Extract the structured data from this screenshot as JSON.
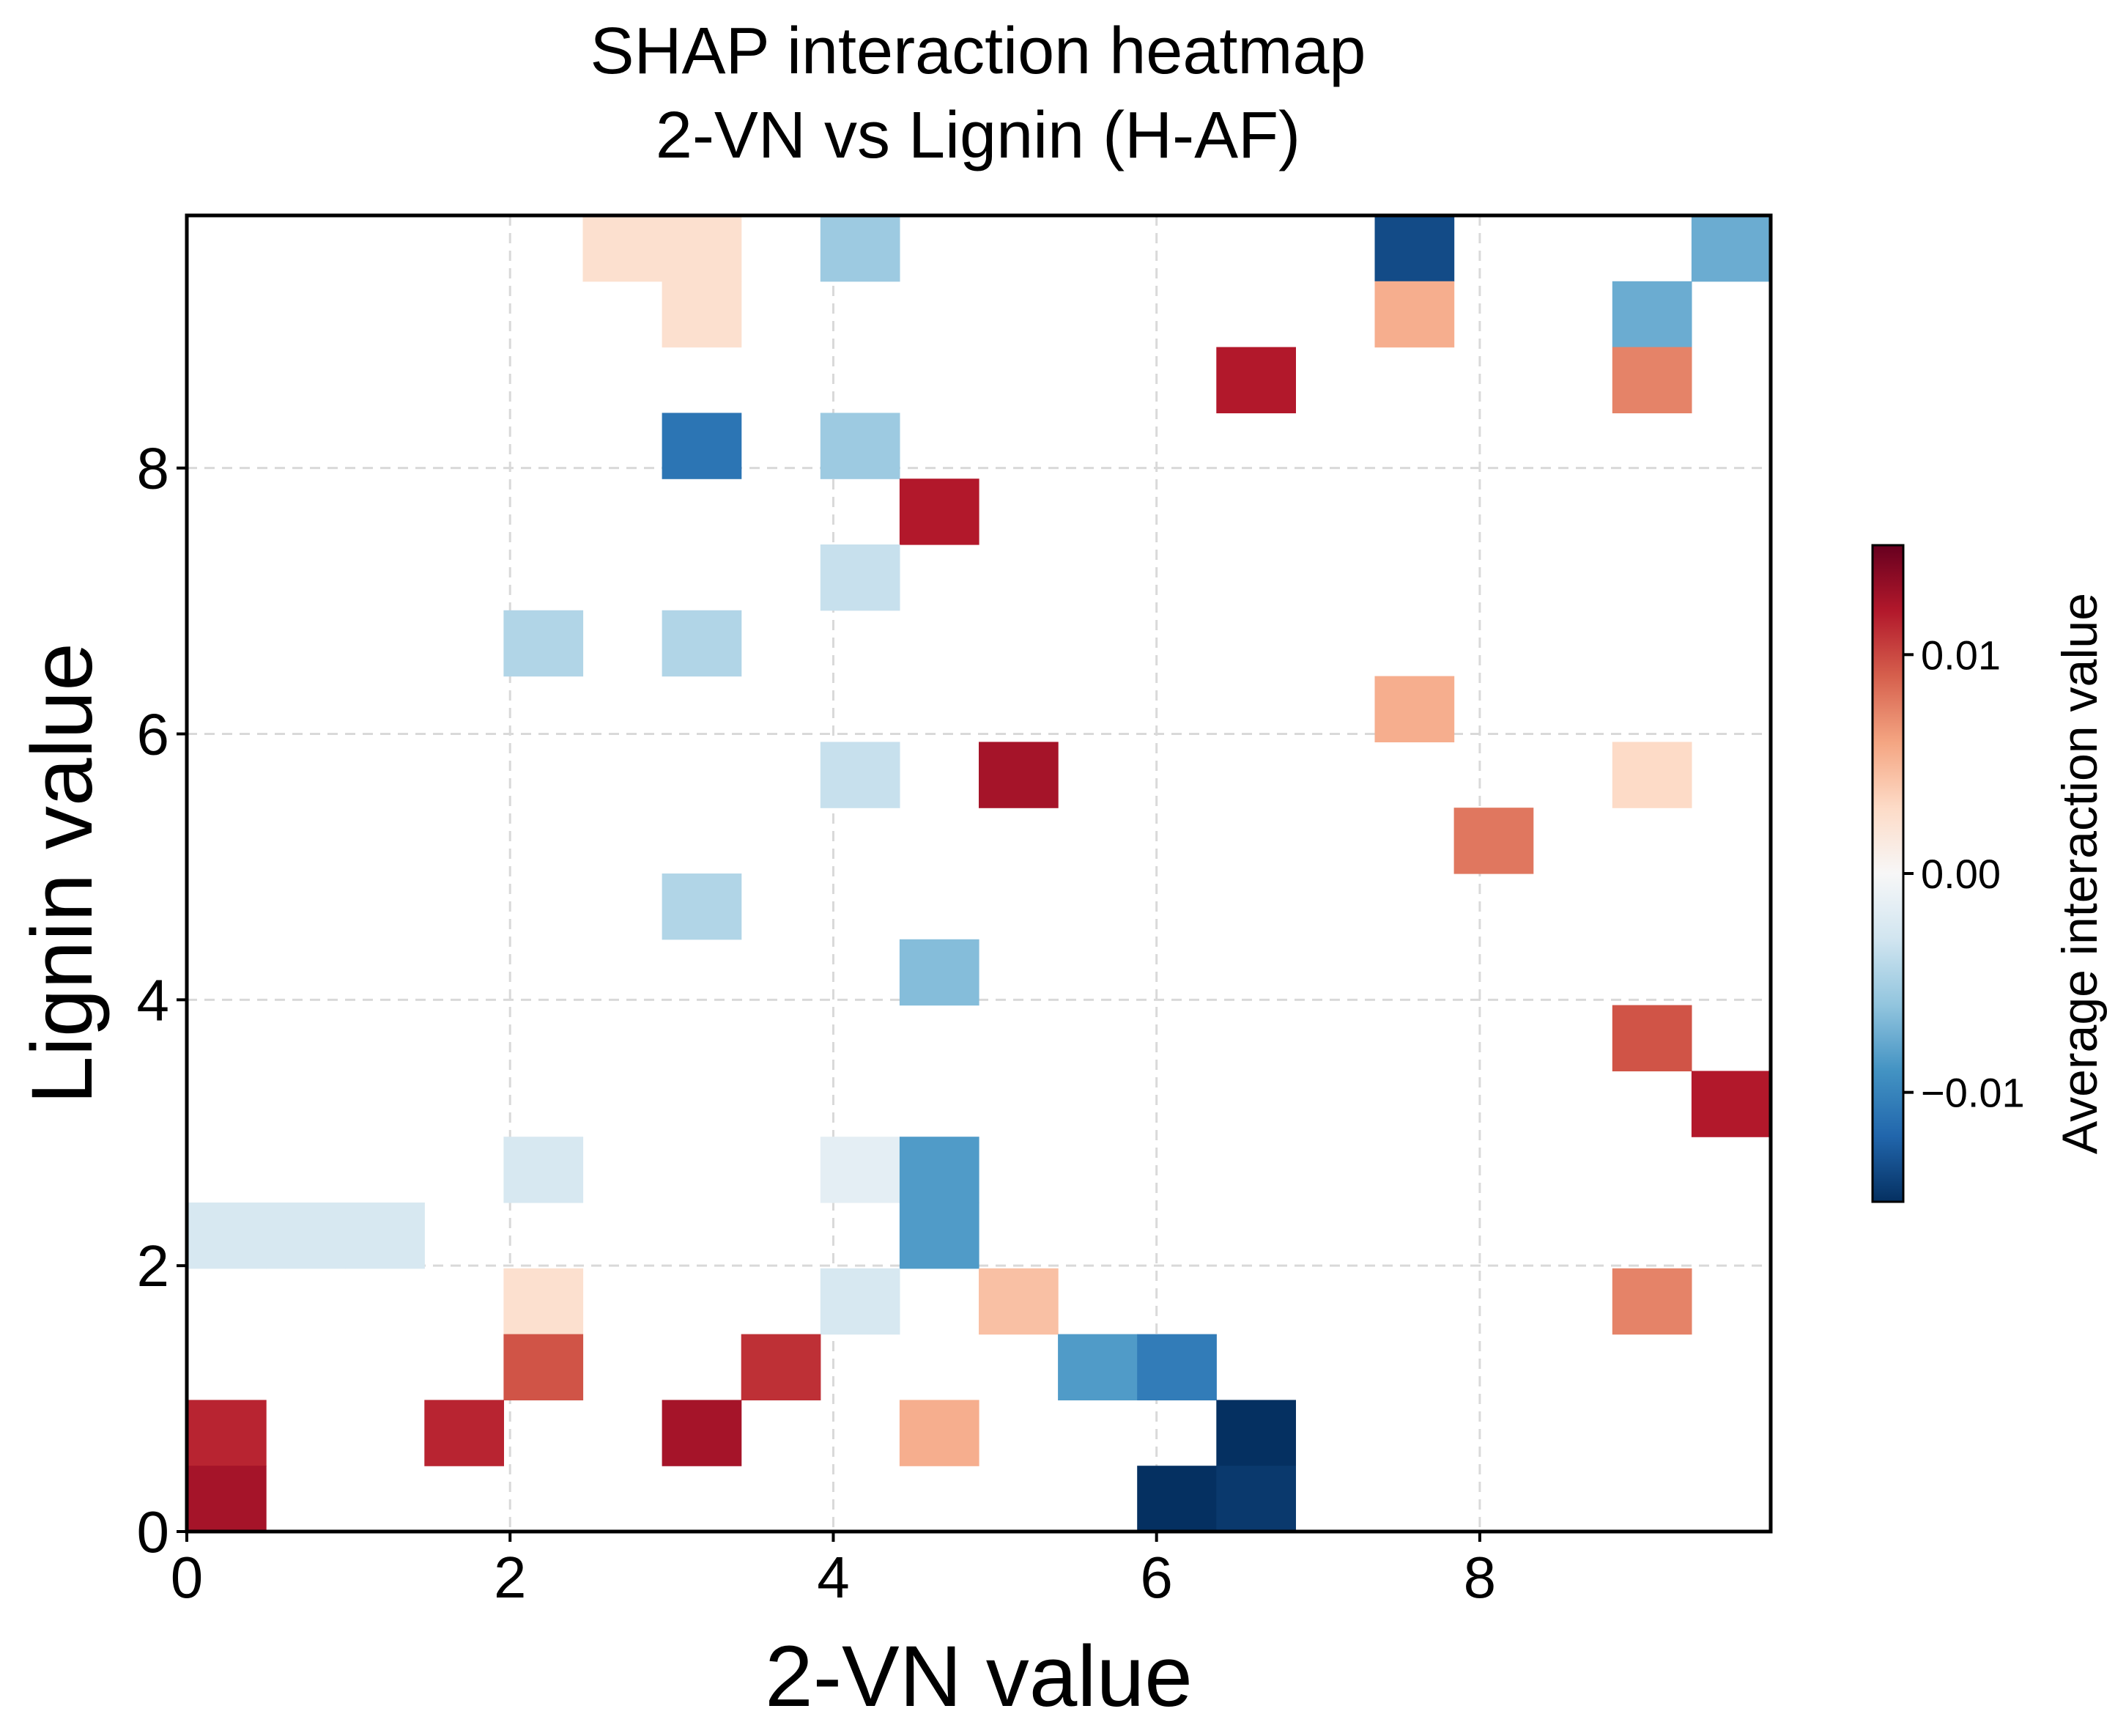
{
  "chart_data": {
    "type": "heatmap",
    "title_lines": [
      "SHAP interaction heatmap",
      "2-VN vs Lignin (H-AF)"
    ],
    "xlabel": "2-VN value",
    "ylabel": "Lignin value",
    "xlim": [
      0,
      9.8
    ],
    "ylim": [
      0,
      9.9
    ],
    "bin_width": 0.49,
    "bin_height": 0.495,
    "grid": true,
    "x_ticks": [
      0,
      2,
      4,
      6,
      8
    ],
    "x_tick_labels": [
      "0",
      "2",
      "4",
      "6",
      "8"
    ],
    "y_ticks": [
      0,
      2,
      4,
      6,
      8
    ],
    "y_tick_labels": [
      "0",
      "2",
      "4",
      "6",
      "8"
    ],
    "colorbar": {
      "label": "Average interaction value",
      "cmap": "RdBu_r",
      "vmin": -0.015,
      "vmax": 0.015,
      "ticks": [
        -0.01,
        0.0,
        0.01
      ],
      "tick_labels": [
        "−0.01",
        "0.00",
        "0.01"
      ],
      "placement": "right"
    },
    "cells": [
      {
        "col": 5,
        "row": 19,
        "value": 0.0025
      },
      {
        "col": 6,
        "row": 19,
        "value": 0.0025
      },
      {
        "col": 8,
        "row": 19,
        "value": -0.0055
      },
      {
        "col": 15,
        "row": 19,
        "value": -0.0135
      },
      {
        "col": 19,
        "row": 19,
        "value": -0.0075
      },
      {
        "col": 6,
        "row": 18,
        "value": 0.0025
      },
      {
        "col": 15,
        "row": 18,
        "value": 0.0055
      },
      {
        "col": 18,
        "row": 18,
        "value": -0.0075
      },
      {
        "col": 13,
        "row": 17,
        "value": 0.012
      },
      {
        "col": 18,
        "row": 17,
        "value": 0.0075
      },
      {
        "col": 6,
        "row": 16,
        "value": -0.011
      },
      {
        "col": 8,
        "row": 16,
        "value": -0.0055
      },
      {
        "col": 9,
        "row": 15,
        "value": 0.012
      },
      {
        "col": 8,
        "row": 14,
        "value": -0.0035
      },
      {
        "col": 4,
        "row": 13,
        "value": -0.0045
      },
      {
        "col": 6,
        "row": 13,
        "value": -0.0045
      },
      {
        "col": 15,
        "row": 12,
        "value": 0.0055
      },
      {
        "col": 8,
        "row": 11,
        "value": -0.0035
      },
      {
        "col": 10,
        "row": 11,
        "value": 0.0125
      },
      {
        "col": 18,
        "row": 11,
        "value": 0.003
      },
      {
        "col": 16,
        "row": 10,
        "value": 0.008
      },
      {
        "col": 6,
        "row": 9,
        "value": -0.0045
      },
      {
        "col": 9,
        "row": 8,
        "value": -0.0065
      },
      {
        "col": 18,
        "row": 7,
        "value": 0.0095
      },
      {
        "col": 19,
        "row": 6,
        "value": 0.012
      },
      {
        "col": 4,
        "row": 5,
        "value": -0.0025
      },
      {
        "col": 8,
        "row": 5,
        "value": -0.0015
      },
      {
        "col": 9,
        "row": 5,
        "value": -0.0085
      },
      {
        "col": 0,
        "row": 4,
        "value": -0.0025
      },
      {
        "col": 1,
        "row": 4,
        "value": -0.0025
      },
      {
        "col": 2,
        "row": 4,
        "value": -0.0025
      },
      {
        "col": 9,
        "row": 4,
        "value": -0.0085
      },
      {
        "col": 4,
        "row": 3,
        "value": 0.0025
      },
      {
        "col": 8,
        "row": 3,
        "value": -0.0025
      },
      {
        "col": 10,
        "row": 3,
        "value": 0.0045
      },
      {
        "col": 18,
        "row": 3,
        "value": 0.0075
      },
      {
        "col": 4,
        "row": 2,
        "value": 0.0095
      },
      {
        "col": 7,
        "row": 2,
        "value": 0.011
      },
      {
        "col": 11,
        "row": 2,
        "value": -0.0085
      },
      {
        "col": 12,
        "row": 2,
        "value": -0.0105
      },
      {
        "col": 0,
        "row": 1,
        "value": 0.0115
      },
      {
        "col": 3,
        "row": 1,
        "value": 0.0115
      },
      {
        "col": 6,
        "row": 1,
        "value": 0.0125
      },
      {
        "col": 9,
        "row": 1,
        "value": 0.0055
      },
      {
        "col": 13,
        "row": 1,
        "value": -0.015
      },
      {
        "col": 0,
        "row": 0,
        "value": 0.0125
      },
      {
        "col": 12,
        "row": 0,
        "value": -0.015
      },
      {
        "col": 13,
        "row": 0,
        "value": -0.0145
      }
    ]
  }
}
